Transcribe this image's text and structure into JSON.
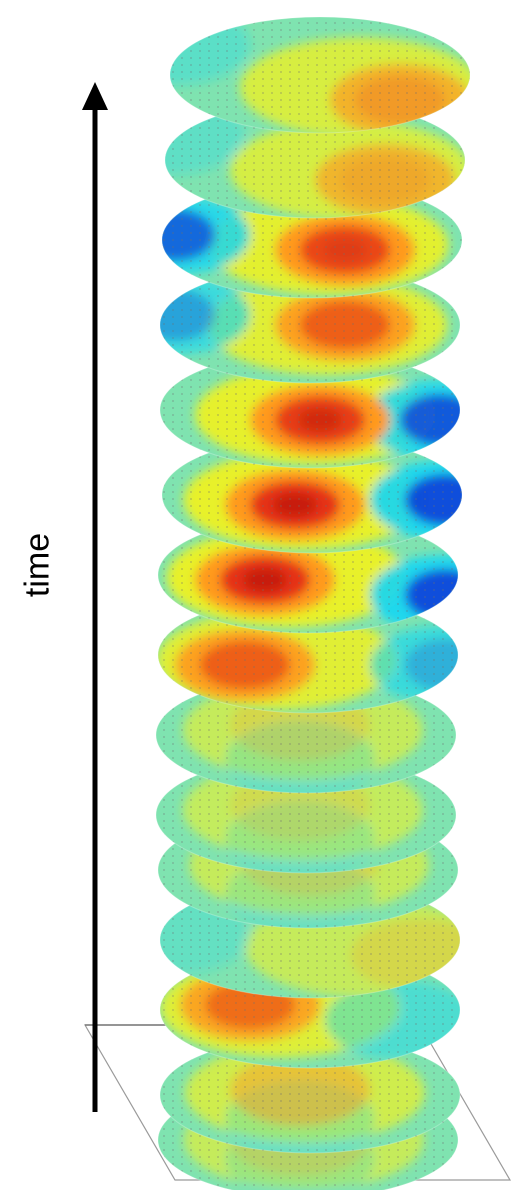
{
  "axis": {
    "label": "time",
    "direction": "up"
  },
  "colormap": {
    "name": "jet",
    "stops": [
      "#0b2bd6",
      "#17d7f2",
      "#7fe3b0",
      "#f6f21a",
      "#ff9a1f",
      "#e22612",
      "#b3130b"
    ]
  },
  "slices": [
    {
      "index": 1,
      "hot_intensity": 0.55,
      "cold_intensity": 0.2
    },
    {
      "index": 2,
      "hot_intensity": 0.5,
      "cold_intensity": 0.15
    },
    {
      "index": 3,
      "hot_intensity": 0.85,
      "cold_intensity": 0.8
    },
    {
      "index": 4,
      "hot_intensity": 0.75,
      "cold_intensity": 0.6
    },
    {
      "index": 5,
      "hot_intensity": 0.9,
      "cold_intensity": 0.85
    },
    {
      "index": 6,
      "hot_intensity": 0.95,
      "cold_intensity": 0.9
    },
    {
      "index": 7,
      "hot_intensity": 0.95,
      "cold_intensity": 0.9
    },
    {
      "index": 8,
      "hot_intensity": 0.75,
      "cold_intensity": 0.55
    },
    {
      "index": 9,
      "hot_intensity": 0.1,
      "cold_intensity": 0.1
    },
    {
      "index": 10,
      "hot_intensity": 0.05,
      "cold_intensity": 0.05
    },
    {
      "index": 11,
      "hot_intensity": 0.1,
      "cold_intensity": 0.05
    },
    {
      "index": 12,
      "hot_intensity": 0.1,
      "cold_intensity": 0.1
    },
    {
      "index": 13,
      "hot_intensity": 0.7,
      "cold_intensity": 0.35
    },
    {
      "index": 14,
      "hot_intensity": 0.35,
      "cold_intensity": 0.1
    },
    {
      "index": 15,
      "hot_intensity": 0.1,
      "cold_intensity": 0.05
    }
  ]
}
